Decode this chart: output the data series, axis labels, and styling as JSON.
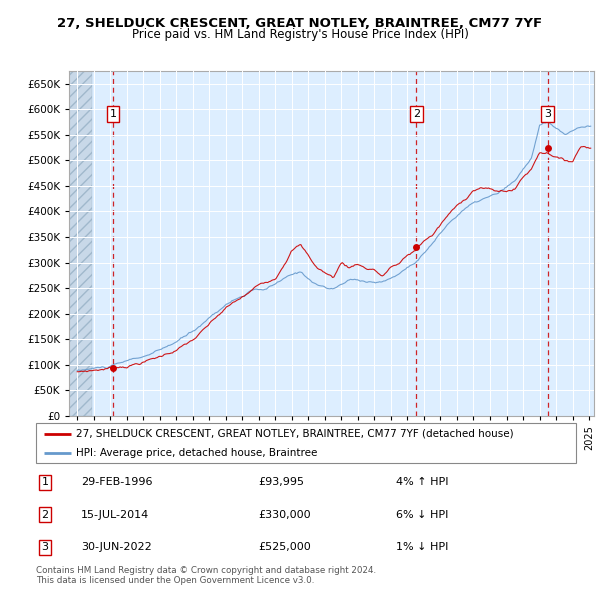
{
  "title_line1": "27, SHELDUCK CRESCENT, GREAT NOTLEY, BRAINTREE, CM77 7YF",
  "title_line2": "Price paid vs. HM Land Registry's House Price Index (HPI)",
  "hpi_color": "#6699cc",
  "price_color": "#cc0000",
  "sale_color": "#cc0000",
  "background_color": "#ddeeff",
  "ylim": [
    0,
    675000
  ],
  "yticks": [
    0,
    50000,
    100000,
    150000,
    200000,
    250000,
    300000,
    350000,
    400000,
    450000,
    500000,
    550000,
    600000,
    650000
  ],
  "xlim_start": 1993.5,
  "xlim_end": 2025.3,
  "legend_label_price": "27, SHELDUCK CRESCENT, GREAT NOTLEY, BRAINTREE, CM77 7YF (detached house)",
  "legend_label_hpi": "HPI: Average price, detached house, Braintree",
  "sales": [
    {
      "num": 1,
      "date": "29-FEB-1996",
      "price": 93995,
      "pct": "4%",
      "dir": "↑",
      "year": 1996.16
    },
    {
      "num": 2,
      "date": "15-JUL-2014",
      "price": 330000,
      "pct": "6%",
      "dir": "↓",
      "year": 2014.54
    },
    {
      "num": 3,
      "date": "30-JUN-2022",
      "price": 525000,
      "pct": "1%",
      "dir": "↓",
      "year": 2022.5
    }
  ],
  "footnote": "Contains HM Land Registry data © Crown copyright and database right 2024.\nThis data is licensed under the Open Government Licence v3.0."
}
